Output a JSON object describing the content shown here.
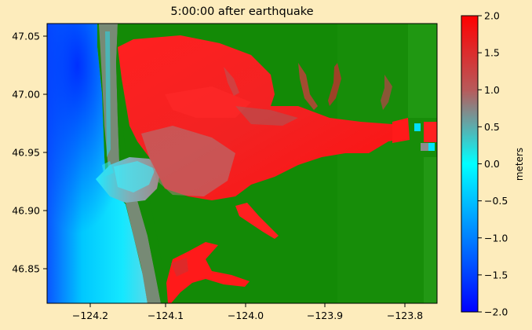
{
  "title": "5:00:00 after earthquake",
  "x_ticks": [
    "−124.2",
    "−124.1",
    "−124.0",
    "−123.9",
    "−123.8"
  ],
  "y_ticks": [
    "47.05",
    "47.00",
    "46.95",
    "46.90",
    "46.85"
  ],
  "colorbar": {
    "label": "meters",
    "ticks": [
      "2.0",
      "1.5",
      "1.0",
      "0.5",
      "0.0",
      "−0.5",
      "−1.0",
      "−1.5",
      "−2.0"
    ],
    "range": [
      -2.0,
      2.0
    ]
  },
  "colors": {
    "background": "#fdecbc",
    "land": "#138a06",
    "deep_ocean": "#0a40ff",
    "ocean": "#00e6ff",
    "inundation": "#ff1111",
    "mid": "#8f8f8f"
  }
}
